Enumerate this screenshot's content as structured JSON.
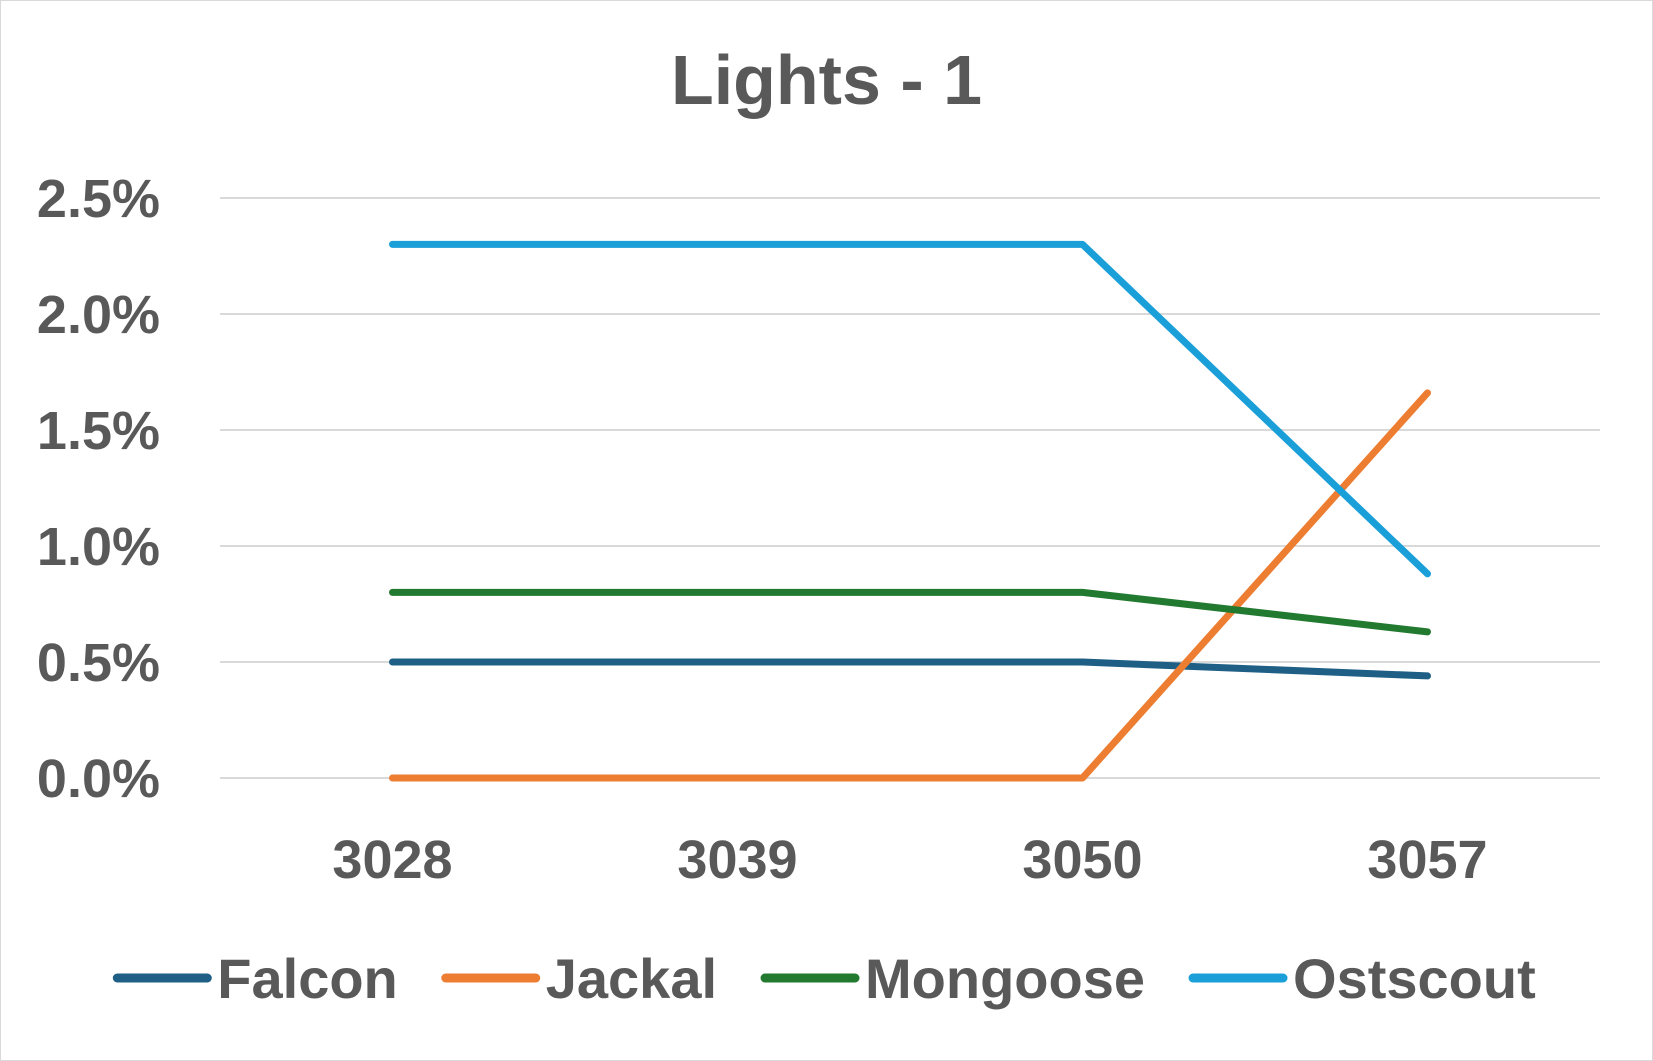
{
  "chart_data": {
    "type": "line",
    "title": "Lights - 1",
    "xlabel": "",
    "ylabel": "",
    "categories": [
      "3028",
      "3039",
      "3050",
      "3057"
    ],
    "ylim": [
      0,
      2.5
    ],
    "y_ticks": [
      "0.0%",
      "0.5%",
      "1.0%",
      "1.5%",
      "2.0%",
      "2.5%"
    ],
    "y_tick_values": [
      0,
      0.5,
      1.0,
      1.5,
      2.0,
      2.5
    ],
    "grid": true,
    "legend_position": "bottom",
    "series": [
      {
        "name": "Falcon",
        "color": "#1f5f86",
        "values": [
          0.5,
          0.5,
          0.5,
          0.44
        ]
      },
      {
        "name": "Jackal",
        "color": "#ed7d31",
        "values": [
          0.0,
          0.0,
          0.0,
          1.66
        ]
      },
      {
        "name": "Mongoose",
        "color": "#217a2f",
        "values": [
          0.8,
          0.8,
          0.8,
          0.63
        ]
      },
      {
        "name": "Ostscout",
        "color": "#1a9fd8",
        "values": [
          2.3,
          2.3,
          2.3,
          0.88
        ]
      }
    ]
  }
}
